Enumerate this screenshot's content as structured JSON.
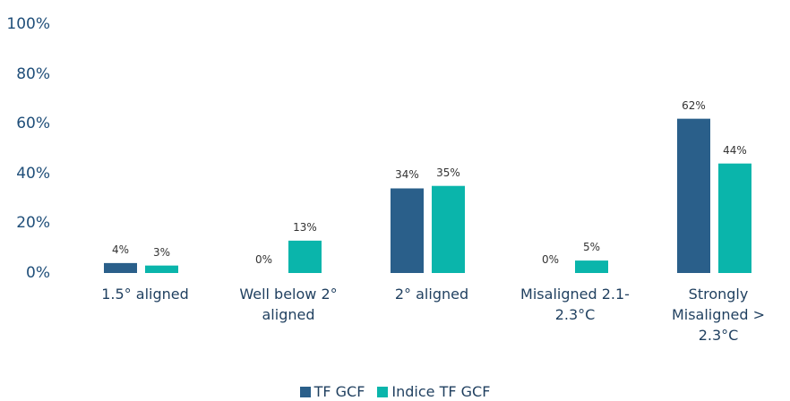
{
  "chart_data": {
    "type": "bar",
    "categories": [
      "1.5° aligned",
      "Well below 2° aligned",
      "2° aligned",
      "Misaligned 2.1-2.3°C",
      "Strongly Misaligned > 2.3°C"
    ],
    "series": [
      {
        "name": "TF GCF",
        "color": "#2a5f8a",
        "values": [
          4,
          0,
          34,
          0,
          62
        ],
        "value_labels": [
          "4%",
          "0%",
          "34%",
          "0%",
          "62%"
        ]
      },
      {
        "name": "Indice TF GCF",
        "color": "#0ab5ab",
        "values": [
          3,
          13,
          35,
          5,
          44
        ],
        "value_labels": [
          "3%",
          "13%",
          "35%",
          "5%",
          "44%"
        ]
      }
    ],
    "ylim": [
      0,
      100
    ],
    "yticks": [
      {
        "value": 0,
        "label": "0%"
      },
      {
        "value": 20,
        "label": "20%"
      },
      {
        "value": 40,
        "label": "40%"
      },
      {
        "value": 60,
        "label": "60%"
      },
      {
        "value": 80,
        "label": "80%"
      },
      {
        "value": 100,
        "label": "100%"
      }
    ],
    "grid": false,
    "legend": "bottom"
  }
}
